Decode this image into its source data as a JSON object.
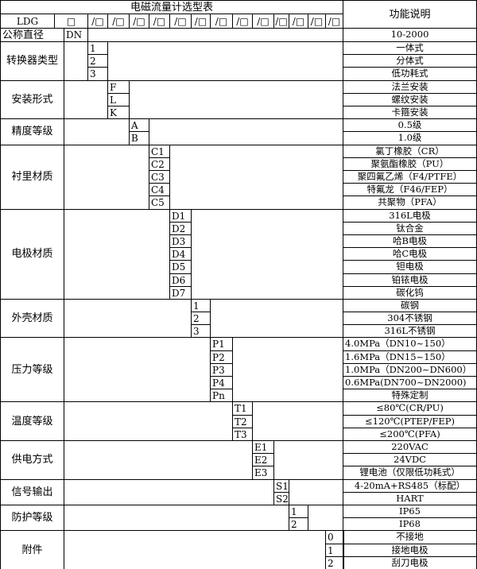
{
  "title": "电磁流量计选型表",
  "function_header": "功能说明",
  "model_row": {
    "prefix": "LDG",
    "first": "□",
    "slots": [
      "/□",
      "/□",
      "/□",
      "/□",
      "/□",
      "/□",
      "/□",
      "/□",
      "/□",
      "/□",
      "/□",
      "/□",
      "/□"
    ]
  },
  "nominal": {
    "label": "公称直径",
    "code": "DN",
    "desc": "10-2000"
  },
  "groups": [
    {
      "label": "转换器类型",
      "col": 1,
      "items": [
        {
          "code": "1",
          "desc": "一体式"
        },
        {
          "code": "2",
          "desc": "分体式"
        },
        {
          "code": "3",
          "desc": "低功耗式"
        }
      ]
    },
    {
      "label": "安装形式",
      "col": 2,
      "items": [
        {
          "code": "F",
          "desc": "法兰安装"
        },
        {
          "code": "L",
          "desc": "螺纹安装"
        },
        {
          "code": "K",
          "desc": "卡箍安装"
        }
      ]
    },
    {
      "label": "精度等级",
      "col": 3,
      "items": [
        {
          "code": "A",
          "desc": "0.5级"
        },
        {
          "code": "B",
          "desc": "1.0级"
        }
      ]
    },
    {
      "label": "衬里材质",
      "col": 4,
      "items": [
        {
          "code": "C1",
          "desc": "氯丁橡胶（CR）"
        },
        {
          "code": "C2",
          "desc": "聚氨酯橡胶（PU）"
        },
        {
          "code": "C3",
          "desc": "聚四氟乙烯（F4/PTFE）"
        },
        {
          "code": "C4",
          "desc": "特氟龙（F46/FEP）"
        },
        {
          "code": "C5",
          "desc": "共聚物（PFA）"
        }
      ]
    },
    {
      "label": "电极材质",
      "col": 5,
      "items": [
        {
          "code": "D1",
          "desc": "316L电极"
        },
        {
          "code": "D2",
          "desc": "钛合金"
        },
        {
          "code": "D3",
          "desc": "哈B电极"
        },
        {
          "code": "D4",
          "desc": "哈C电极"
        },
        {
          "code": "D5",
          "desc": "钽电极"
        },
        {
          "code": "D6",
          "desc": "铂铱电极"
        },
        {
          "code": "D7",
          "desc": "碳化钨"
        }
      ]
    },
    {
      "label": "外壳材质",
      "col": 6,
      "items": [
        {
          "code": "1",
          "desc": "碳钢"
        },
        {
          "code": "2",
          "desc": "304不锈钢"
        },
        {
          "code": "3",
          "desc": "316L不锈钢"
        }
      ]
    },
    {
      "label": "压力等级",
      "col": 7,
      "items": [
        {
          "code": "P1",
          "desc": "4.0MPa（DN10~150）",
          "left": true
        },
        {
          "code": "P2",
          "desc": "1.6MPa（DN15~150）",
          "left": true
        },
        {
          "code": "P3",
          "desc": "1.0MPa（DN200~DN600）",
          "left": true
        },
        {
          "code": "P4",
          "desc": "0.6MPa(DN700~DN2000)",
          "left": true
        },
        {
          "code": "Pn",
          "desc": "特殊定制"
        }
      ]
    },
    {
      "label": "温度等级",
      "col": 8,
      "items": [
        {
          "code": "T1",
          "desc": "≤80℃(CR/PU)"
        },
        {
          "code": "T2",
          "desc": "≤120℃(PTEP/FEP)"
        },
        {
          "code": "T3",
          "desc": "≤200℃(PFA)"
        }
      ]
    },
    {
      "label": "供电方式",
      "col": 9,
      "items": [
        {
          "code": "E1",
          "desc": "220VAC"
        },
        {
          "code": "E2",
          "desc": "24VDC"
        },
        {
          "code": "E3",
          "desc": "锂电池（仅限低功耗式）"
        }
      ]
    },
    {
      "label": "信号输出",
      "col": 10,
      "items": [
        {
          "code": "S1",
          "desc": "4-20mA+RS485（标配）"
        },
        {
          "code": "S2",
          "desc": "HART"
        }
      ]
    },
    {
      "label": "防护等级",
      "col": 11,
      "items": [
        {
          "code": "1",
          "desc": "IP65"
        },
        {
          "code": "2",
          "desc": "IP68"
        }
      ]
    },
    {
      "label": "附件",
      "col": 13,
      "items": [
        {
          "code": "0",
          "desc": "不接地"
        },
        {
          "code": "1",
          "desc": "接地电极"
        },
        {
          "code": "2",
          "desc": "刮刀电极"
        }
      ]
    }
  ]
}
